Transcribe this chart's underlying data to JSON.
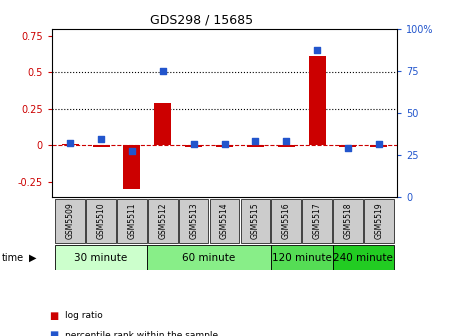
{
  "title": "GDS298 / 15685",
  "samples": [
    "GSM5509",
    "GSM5510",
    "GSM5511",
    "GSM5512",
    "GSM5513",
    "GSM5514",
    "GSM5515",
    "GSM5516",
    "GSM5517",
    "GSM5518",
    "GSM5519"
  ],
  "log_ratio": [
    0.01,
    -0.01,
    -0.3,
    0.29,
    -0.01,
    -0.01,
    -0.01,
    -0.01,
    0.61,
    -0.01,
    -0.01
  ],
  "percentile": [
    32,
    34,
    27,
    75,
    31,
    31,
    33,
    33,
    87,
    29,
    31
  ],
  "ylim_left": [
    -0.35,
    0.8
  ],
  "ylim_right": [
    0,
    100
  ],
  "yticks_left": [
    -0.25,
    0.0,
    0.25,
    0.5,
    0.75
  ],
  "yticks_right": [
    0,
    25,
    50,
    75,
    100
  ],
  "hlines": [
    0.25,
    0.5
  ],
  "bar_color": "#cc0000",
  "dot_color": "#2255cc",
  "zero_line_color": "#cc0000",
  "groups": [
    {
      "label": "30 minute",
      "start": 0,
      "end": 3,
      "color": "#ccffcc"
    },
    {
      "label": "60 minute",
      "start": 3,
      "end": 7,
      "color": "#88ee88"
    },
    {
      "label": "120 minute",
      "start": 7,
      "end": 9,
      "color": "#55dd55"
    },
    {
      "label": "240 minute",
      "start": 9,
      "end": 11,
      "color": "#22cc22"
    }
  ],
  "legend": [
    {
      "label": "log ratio",
      "color": "#cc0000"
    },
    {
      "label": "percentile rank within the sample",
      "color": "#2255cc"
    }
  ],
  "bg_color": "#ffffff",
  "sample_box_color": "#cccccc",
  "title_fontsize": 9,
  "tick_fontsize": 7,
  "sample_fontsize": 5.5,
  "group_fontsize": 7.5
}
